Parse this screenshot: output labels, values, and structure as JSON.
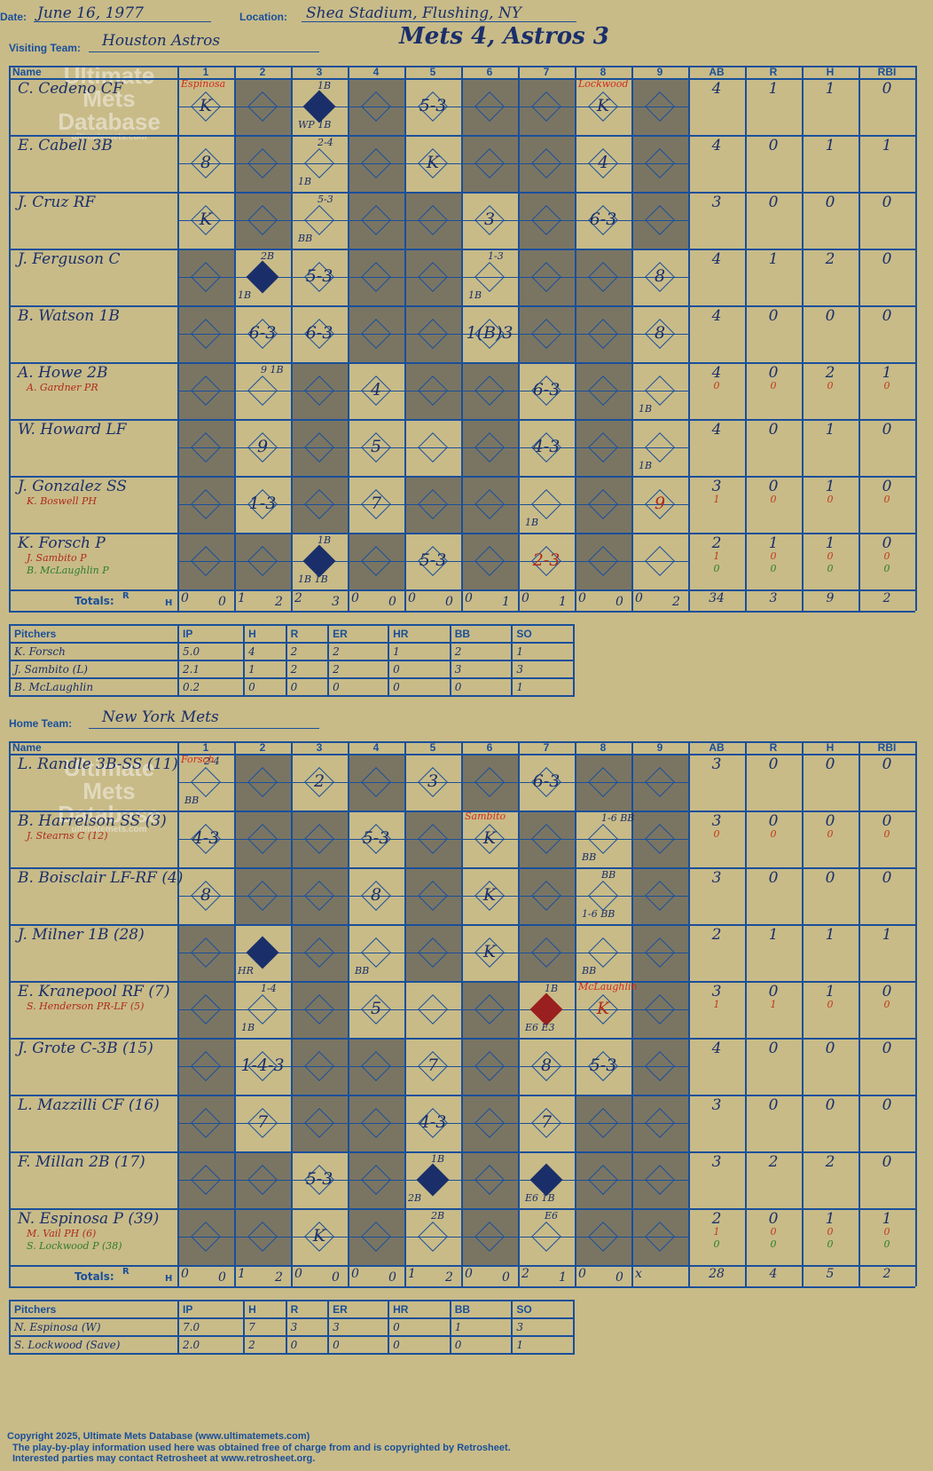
{
  "header": {
    "date_label": "Date:",
    "date": "June 16, 1977",
    "location_label": "Location:",
    "location": "Shea Stadium, Flushing, NY",
    "visiting_label": "Visiting Team:",
    "visiting_team": "Houston Astros",
    "title": "Mets 4, Astros 3",
    "home_label": "Home Team:",
    "home_team": "New York Mets"
  },
  "columns": {
    "name": "Name",
    "innings": [
      "1",
      "2",
      "3",
      "4",
      "5",
      "6",
      "7",
      "8",
      "9"
    ],
    "ab": "AB",
    "r": "R",
    "h": "H",
    "rbi": "RBI",
    "totals": "Totals:",
    "r_small": "R",
    "h_small": "H"
  },
  "visitors": {
    "players": [
      {
        "name": "C. Cedeno CF",
        "stats": [
          "4",
          "1",
          "1",
          "0"
        ]
      },
      {
        "name": "E. Cabell 3B",
        "stats": [
          "4",
          "0",
          "1",
          "1"
        ]
      },
      {
        "name": "J. Cruz RF",
        "stats": [
          "3",
          "0",
          "0",
          "0"
        ]
      },
      {
        "name": "J. Ferguson C",
        "stats": [
          "4",
          "1",
          "2",
          "0"
        ]
      },
      {
        "name": "B. Watson 1B",
        "stats": [
          "4",
          "0",
          "0",
          "0"
        ]
      },
      {
        "name": "A. Howe 2B",
        "sub": "A. Gardner PR",
        "stats": [
          "4",
          "0",
          "2",
          "1"
        ],
        "sub_stats": [
          "0",
          "0",
          "0",
          "0"
        ]
      },
      {
        "name": "W. Howard LF",
        "stats": [
          "4",
          "0",
          "1",
          "0"
        ]
      },
      {
        "name": "J. Gonzalez SS",
        "sub": "K. Boswell PH",
        "stats": [
          "3",
          "0",
          "1",
          "0"
        ],
        "sub_stats": [
          "1",
          "0",
          "0",
          "0"
        ]
      },
      {
        "name": "K. Forsch P",
        "sub": "J. Sambito P",
        "sub2": "B. McLaughlin P",
        "stats": [
          "2",
          "1",
          "1",
          "0"
        ],
        "sub_stats": [
          "1",
          "0",
          "0",
          "0"
        ],
        "sub2_stats": [
          "0",
          "0",
          "0",
          "0"
        ]
      }
    ],
    "plays": [
      {
        "row": 0,
        "inn": 1,
        "text": "K"
      },
      {
        "row": 0,
        "inn": 5,
        "text": "5-3"
      },
      {
        "row": 0,
        "inn": 8,
        "text": "K"
      },
      {
        "row": 1,
        "inn": 1,
        "text": "8"
      },
      {
        "row": 1,
        "inn": 5,
        "text": "K"
      },
      {
        "row": 1,
        "inn": 8,
        "text": "4"
      },
      {
        "row": 2,
        "inn": 1,
        "text": "K"
      },
      {
        "row": 2,
        "inn": 6,
        "text": "3"
      },
      {
        "row": 2,
        "inn": 8,
        "text": "6-3"
      },
      {
        "row": 3,
        "inn": 3,
        "text": "5-3"
      },
      {
        "row": 3,
        "inn": 9,
        "text": "8"
      },
      {
        "row": 4,
        "inn": 2,
        "text": "6-3"
      },
      {
        "row": 4,
        "inn": 3,
        "text": "6-3"
      },
      {
        "row": 4,
        "inn": 6,
        "text": "1(B)3"
      },
      {
        "row": 4,
        "inn": 9,
        "text": "8"
      },
      {
        "row": 5,
        "inn": 4,
        "text": "4"
      },
      {
        "row": 5,
        "inn": 7,
        "text": "6-3"
      },
      {
        "row": 6,
        "inn": 2,
        "text": "9"
      },
      {
        "row": 6,
        "inn": 4,
        "text": "5"
      },
      {
        "row": 6,
        "inn": 7,
        "text": "4-3"
      },
      {
        "row": 7,
        "inn": 2,
        "text": "1-3"
      },
      {
        "row": 7,
        "inn": 4,
        "text": "7"
      },
      {
        "row": 7,
        "inn": 9,
        "text": "9",
        "red": true
      },
      {
        "row": 8,
        "inn": 5,
        "text": "5-3"
      },
      {
        "row": 8,
        "inn": 7,
        "text": "2-3",
        "red": true
      }
    ],
    "filled": [
      {
        "row": 0,
        "inn": 3
      },
      {
        "row": 3,
        "inn": 2
      },
      {
        "row": 8,
        "inn": 3
      }
    ],
    "notes": [
      {
        "row": 0,
        "inn": 3,
        "text": "1B"
      },
      {
        "row": 0,
        "inn": 3,
        "text": "WP 1B",
        "pos": "bottom"
      },
      {
        "row": 1,
        "inn": 3,
        "text": "2-4"
      },
      {
        "row": 1,
        "inn": 3,
        "text": "1B",
        "pos": "bottom"
      },
      {
        "row": 2,
        "inn": 3,
        "text": "5-3"
      },
      {
        "row": 2,
        "inn": 3,
        "text": "BB",
        "pos": "bottom"
      },
      {
        "row": 3,
        "inn": 2,
        "text": "2B"
      },
      {
        "row": 3,
        "inn": 2,
        "text": "1B",
        "pos": "bottomleft"
      },
      {
        "row": 3,
        "inn": 6,
        "text": "1-3"
      },
      {
        "row": 3,
        "inn": 6,
        "text": "1B",
        "pos": "bottom"
      },
      {
        "row": 5,
        "inn": 2,
        "text": "9  1B"
      },
      {
        "row": 5,
        "inn": 9,
        "text": "1B",
        "pos": "bottom"
      },
      {
        "row": 6,
        "inn": 9,
        "text": "1B",
        "pos": "bottom"
      },
      {
        "row": 7,
        "inn": 7,
        "text": "1B",
        "pos": "bottom"
      },
      {
        "row": 8,
        "inn": 3,
        "text": "1B"
      },
      {
        "row": 8,
        "inn": 3,
        "text": "1B  1B",
        "pos": "bottom"
      }
    ],
    "pitcher_marks": [
      {
        "row": 0,
        "inn": 1,
        "text": "Espinosa"
      },
      {
        "row": 0,
        "inn": 8,
        "text": "Lockwood"
      }
    ],
    "shaded": [
      [
        2,
        4,
        6,
        7,
        9
      ],
      [
        2,
        4,
        6,
        7,
        9
      ],
      [
        2,
        4,
        5,
        7,
        9
      ],
      [
        1,
        4,
        5,
        7,
        8
      ],
      [
        1,
        4,
        5,
        7,
        8
      ],
      [
        1,
        3,
        5,
        6,
        8
      ],
      [
        1,
        3,
        6,
        8
      ],
      [
        1,
        3,
        5,
        6,
        8
      ],
      [
        1,
        2,
        4,
        6,
        8
      ]
    ],
    "totals": [
      [
        "0",
        "0"
      ],
      [
        "1",
        "2"
      ],
      [
        "2",
        "3"
      ],
      [
        "0",
        "0"
      ],
      [
        "0",
        "0"
      ],
      [
        "0",
        "1"
      ],
      [
        "0",
        "1"
      ],
      [
        "0",
        "0"
      ],
      [
        "0",
        "2"
      ]
    ],
    "grand": [
      "34",
      "3",
      "9",
      "2"
    ]
  },
  "visitor_pitchers": {
    "headers": [
      "Pitchers",
      "IP",
      "H",
      "R",
      "ER",
      "HR",
      "BB",
      "SO"
    ],
    "rows": [
      [
        "K. Forsch",
        "5.0",
        "4",
        "2",
        "2",
        "1",
        "2",
        "1"
      ],
      [
        "J. Sambito (L)",
        "2.1",
        "1",
        "2",
        "2",
        "0",
        "3",
        "3"
      ],
      [
        "B. McLaughlin",
        "0.2",
        "0",
        "0",
        "0",
        "0",
        "0",
        "1"
      ]
    ]
  },
  "home": {
    "players": [
      {
        "name": "L. Randle 3B-SS (11)",
        "stats": [
          "3",
          "0",
          "0",
          "0"
        ]
      },
      {
        "name": "B. Harrelson SS (3)",
        "sub": "J. Stearns C (12)",
        "stats": [
          "3",
          "0",
          "0",
          "0"
        ],
        "sub_stats": [
          "0",
          "0",
          "0",
          "0"
        ]
      },
      {
        "name": "B. Boisclair LF-RF (4)",
        "stats": [
          "3",
          "0",
          "0",
          "0"
        ]
      },
      {
        "name": "J. Milner 1B (28)",
        "stats": [
          "2",
          "1",
          "1",
          "1"
        ]
      },
      {
        "name": "E. Kranepool RF (7)",
        "sub": "S. Henderson PR-LF (5)",
        "stats": [
          "3",
          "0",
          "1",
          "0"
        ],
        "sub_stats": [
          "1",
          "1",
          "0",
          "0"
        ]
      },
      {
        "name": "J. Grote C-3B (15)",
        "stats": [
          "4",
          "0",
          "0",
          "0"
        ]
      },
      {
        "name": "L. Mazzilli CF (16)",
        "stats": [
          "3",
          "0",
          "0",
          "0"
        ]
      },
      {
        "name": "F. Millan 2B (17)",
        "stats": [
          "3",
          "2",
          "2",
          "0"
        ]
      },
      {
        "name": "N. Espinosa P (39)",
        "sub": "M. Vail PH (6)",
        "sub2": "S. Lockwood P (38)",
        "stats": [
          "2",
          "0",
          "1",
          "1"
        ],
        "sub_stats": [
          "1",
          "0",
          "0",
          "0"
        ],
        "sub2_stats": [
          "0",
          "0",
          "0",
          "0"
        ]
      }
    ],
    "plays": [
      {
        "row": 0,
        "inn": 3,
        "text": "2"
      },
      {
        "row": 0,
        "inn": 5,
        "text": "3"
      },
      {
        "row": 0,
        "inn": 7,
        "text": "6-3"
      },
      {
        "row": 1,
        "inn": 1,
        "text": "4-3"
      },
      {
        "row": 1,
        "inn": 4,
        "text": "5-3"
      },
      {
        "row": 1,
        "inn": 6,
        "text": "K"
      },
      {
        "row": 2,
        "inn": 1,
        "text": "8"
      },
      {
        "row": 2,
        "inn": 4,
        "text": "8"
      },
      {
        "row": 2,
        "inn": 6,
        "text": "K"
      },
      {
        "row": 3,
        "inn": 6,
        "text": "K"
      },
      {
        "row": 4,
        "inn": 4,
        "text": "5"
      },
      {
        "row": 4,
        "inn": 8,
        "text": "K",
        "red": true
      },
      {
        "row": 5,
        "inn": 2,
        "text": "1-4-3"
      },
      {
        "row": 5,
        "inn": 5,
        "text": "7"
      },
      {
        "row": 5,
        "inn": 7,
        "text": "8"
      },
      {
        "row": 5,
        "inn": 8,
        "text": "5-3"
      },
      {
        "row": 6,
        "inn": 2,
        "text": "7"
      },
      {
        "row": 6,
        "inn": 5,
        "text": "4-3"
      },
      {
        "row": 6,
        "inn": 7,
        "text": "7"
      },
      {
        "row": 7,
        "inn": 3,
        "text": "5-3"
      },
      {
        "row": 8,
        "inn": 3,
        "text": "K"
      }
    ],
    "filled": [
      {
        "row": 3,
        "inn": 2
      },
      {
        "row": 7,
        "inn": 5
      },
      {
        "row": 7,
        "inn": 7
      },
      {
        "row": 4,
        "inn": 7,
        "red": true
      }
    ],
    "notes": [
      {
        "row": 0,
        "inn": 1,
        "text": "2-4"
      },
      {
        "row": 0,
        "inn": 1,
        "text": "BB",
        "pos": "bottom"
      },
      {
        "row": 1,
        "inn": 8,
        "text": "1-6 BB"
      },
      {
        "row": 1,
        "inn": 8,
        "text": "BB",
        "pos": "bottom"
      },
      {
        "row": 2,
        "inn": 8,
        "text": "BB"
      },
      {
        "row": 2,
        "inn": 8,
        "text": "1-6 BB",
        "pos": "bottom"
      },
      {
        "row": 3,
        "inn": 2,
        "text": "HR",
        "pos": "bottomleft"
      },
      {
        "row": 3,
        "inn": 4,
        "text": "BB",
        "pos": "bottom"
      },
      {
        "row": 3,
        "inn": 8,
        "text": "BB",
        "pos": "bottom"
      },
      {
        "row": 4,
        "inn": 2,
        "text": "1-4"
      },
      {
        "row": 4,
        "inn": 2,
        "text": "1B",
        "pos": "bottom"
      },
      {
        "row": 4,
        "inn": 7,
        "text": "1B"
      },
      {
        "row": 4,
        "inn": 7,
        "text": "E6  E3",
        "pos": "bottom"
      },
      {
        "row": 7,
        "inn": 5,
        "text": "1B"
      },
      {
        "row": 7,
        "inn": 5,
        "text": "2B",
        "pos": "bottomleft"
      },
      {
        "row": 7,
        "inn": 7,
        "text": "E6  1B",
        "pos": "bottom"
      },
      {
        "row": 8,
        "inn": 5,
        "text": "2B"
      },
      {
        "row": 8,
        "inn": 7,
        "text": "E6"
      }
    ],
    "pitcher_marks": [
      {
        "row": 0,
        "inn": 1,
        "text": "Forsch"
      },
      {
        "row": 1,
        "inn": 6,
        "text": "Sambito"
      },
      {
        "row": 4,
        "inn": 8,
        "text": "McLaughlin"
      }
    ],
    "shaded": [
      [
        2,
        4,
        6,
        8,
        9
      ],
      [
        2,
        3,
        5,
        7,
        9
      ],
      [
        2,
        3,
        5,
        7,
        9
      ],
      [
        1,
        3,
        5,
        7,
        9
      ],
      [
        1,
        3,
        6,
        9
      ],
      [
        1,
        3,
        4,
        6,
        9
      ],
      [
        1,
        3,
        4,
        6,
        8,
        9
      ],
      [
        1,
        2,
        4,
        6,
        8,
        9
      ],
      [
        1,
        2,
        4,
        6,
        8,
        9
      ]
    ],
    "totals": [
      [
        "0",
        "0"
      ],
      [
        "1",
        "2"
      ],
      [
        "0",
        "0"
      ],
      [
        "0",
        "0"
      ],
      [
        "1",
        "2"
      ],
      [
        "0",
        "0"
      ],
      [
        "2",
        "1"
      ],
      [
        "0",
        "0"
      ],
      [
        "x",
        ""
      ]
    ],
    "grand": [
      "28",
      "4",
      "5",
      "2"
    ]
  },
  "home_pitchers": {
    "headers": [
      "Pitchers",
      "IP",
      "H",
      "R",
      "ER",
      "HR",
      "BB",
      "SO"
    ],
    "rows": [
      [
        "N. Espinosa (W)",
        "7.0",
        "7",
        "3",
        "3",
        "0",
        "1",
        "3"
      ],
      [
        "S. Lockwood (Save)",
        "2.0",
        "2",
        "0",
        "0",
        "0",
        "0",
        "1"
      ]
    ]
  },
  "watermark": {
    "line1": "Ultimate",
    "line2": "Mets",
    "line3": "Database",
    "line4": "ultimatemets.com"
  },
  "footer": {
    "line1": "Copyright 2025, Ultimate Mets Database (www.ultimatemets.com)",
    "line2": "The play-by-play information used here was obtained free of charge from and is copyrighted by Retrosheet.",
    "line3": "Interested parties may contact Retrosheet at www.retrosheet.org."
  }
}
